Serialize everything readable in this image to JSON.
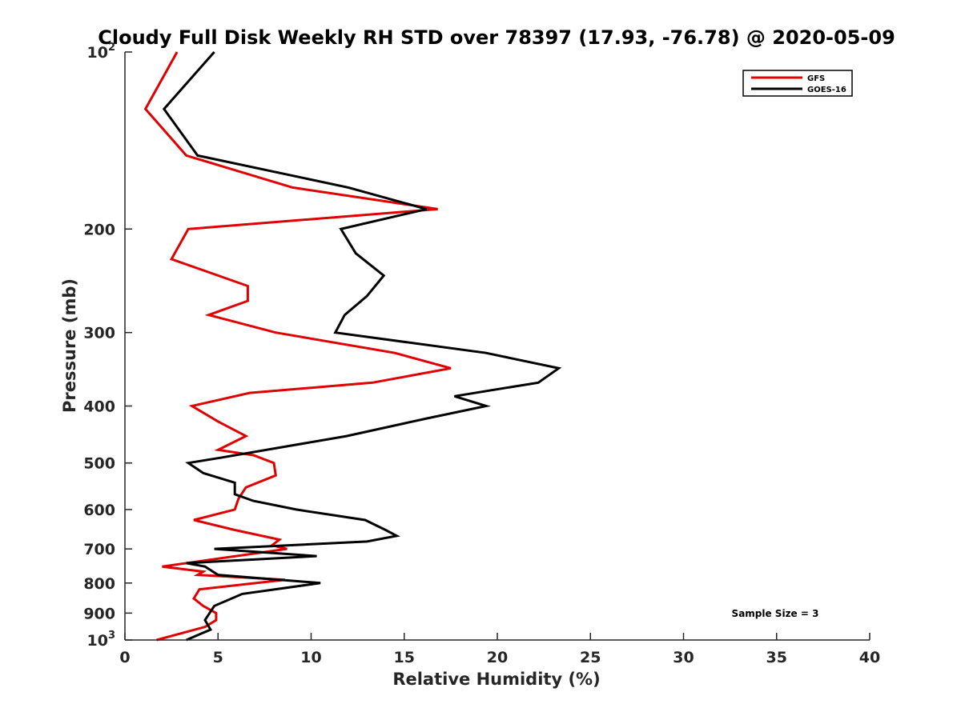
{
  "chart_data": {
    "type": "line",
    "title": "Cloudy Full Disk Weekly RH STD over 78397 (17.93, -76.78) @ 2020-05-09",
    "xlabel": "Relative Humidity (%)",
    "ylabel": "Pressure (mb)",
    "xlim": [
      0,
      40
    ],
    "ylim": [
      100,
      1000
    ],
    "y_scale": "log",
    "y_reversed": true,
    "grid": false,
    "legend_position": "top-right",
    "x_ticks": [
      0,
      5,
      10,
      15,
      20,
      25,
      30,
      35,
      40
    ],
    "x_tick_labels": [
      "0",
      "5",
      "10",
      "15",
      "20",
      "25",
      "30",
      "35",
      "40"
    ],
    "y_ticks": [
      100,
      200,
      300,
      400,
      500,
      600,
      700,
      800,
      900,
      1000
    ],
    "y_tick_labels": [
      {
        "base": "10",
        "exp": "2"
      },
      {
        "base": "200",
        "exp": ""
      },
      {
        "base": "300",
        "exp": ""
      },
      {
        "base": "400",
        "exp": ""
      },
      {
        "base": "500",
        "exp": ""
      },
      {
        "base": "600",
        "exp": ""
      },
      {
        "base": "700",
        "exp": ""
      },
      {
        "base": "800",
        "exp": ""
      },
      {
        "base": "900",
        "exp": ""
      },
      {
        "base": "10",
        "exp": "3"
      }
    ],
    "annotation": "Sample Size = 3",
    "series": [
      {
        "name": "GFS",
        "color": "#e00000",
        "points": [
          [
            2.8,
            100
          ],
          [
            1.1,
            125
          ],
          [
            3.3,
            150
          ],
          [
            9.0,
            170
          ],
          [
            16.8,
            185
          ],
          [
            3.4,
            200
          ],
          [
            2.5,
            225
          ],
          [
            6.6,
            250
          ],
          [
            6.6,
            265
          ],
          [
            4.5,
            280
          ],
          [
            8.1,
            300
          ],
          [
            14.5,
            325
          ],
          [
            17.5,
            345
          ],
          [
            13.3,
            365
          ],
          [
            6.7,
            380
          ],
          [
            3.6,
            400
          ],
          [
            5.0,
            425
          ],
          [
            6.5,
            450
          ],
          [
            5.0,
            475
          ],
          [
            6.9,
            485
          ],
          [
            8.0,
            500
          ],
          [
            8.1,
            525
          ],
          [
            6.5,
            550
          ],
          [
            6.1,
            575
          ],
          [
            5.9,
            600
          ],
          [
            3.7,
            625
          ],
          [
            5.9,
            650
          ],
          [
            8.3,
            675
          ],
          [
            7.9,
            690
          ],
          [
            8.7,
            700
          ],
          [
            2.0,
            750
          ],
          [
            4.2,
            765
          ],
          [
            3.9,
            775
          ],
          [
            8.6,
            790
          ],
          [
            4.0,
            820
          ],
          [
            3.7,
            850
          ],
          [
            4.2,
            875
          ],
          [
            4.9,
            900
          ],
          [
            4.9,
            925
          ],
          [
            4.3,
            950
          ],
          [
            1.7,
            1000
          ]
        ]
      },
      {
        "name": "GOES-16",
        "color": "#000000",
        "points": [
          [
            4.8,
            100
          ],
          [
            2.1,
            125
          ],
          [
            3.9,
            150
          ],
          [
            12.0,
            170
          ],
          [
            16.2,
            185
          ],
          [
            11.6,
            200
          ],
          [
            12.4,
            220
          ],
          [
            13.9,
            240
          ],
          [
            13.0,
            260
          ],
          [
            11.8,
            280
          ],
          [
            11.3,
            300
          ],
          [
            19.4,
            325
          ],
          [
            23.3,
            345
          ],
          [
            22.2,
            365
          ],
          [
            17.7,
            385
          ],
          [
            19.4,
            400
          ],
          [
            16.2,
            420
          ],
          [
            11.9,
            450
          ],
          [
            5.1,
            490
          ],
          [
            3.4,
            500
          ],
          [
            4.2,
            520
          ],
          [
            5.9,
            540
          ],
          [
            5.9,
            565
          ],
          [
            6.9,
            580
          ],
          [
            9.2,
            600
          ],
          [
            12.9,
            625
          ],
          [
            14.0,
            650
          ],
          [
            14.6,
            665
          ],
          [
            13.0,
            680
          ],
          [
            4.8,
            700
          ],
          [
            10.3,
            720
          ],
          [
            3.3,
            740
          ],
          [
            4.3,
            750
          ],
          [
            5.0,
            775
          ],
          [
            10.5,
            800
          ],
          [
            6.3,
            835
          ],
          [
            4.8,
            875
          ],
          [
            4.3,
            925
          ],
          [
            4.6,
            960
          ],
          [
            3.3,
            1000
          ]
        ]
      }
    ]
  }
}
